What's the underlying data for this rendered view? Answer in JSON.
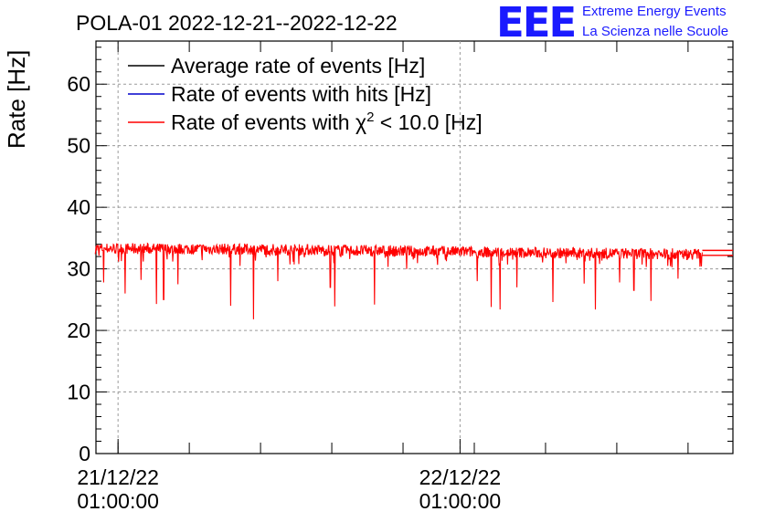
{
  "chart_data": {
    "type": "line",
    "title": "POLA-01 2022-12-21--2022-12-22",
    "ylabel": "Rate [Hz]",
    "xlabel": "",
    "ylim": [
      0,
      67
    ],
    "xlim_hours": [
      -1.55,
      43.15
    ],
    "yticks": [
      0,
      10,
      20,
      30,
      40,
      50,
      60
    ],
    "xticks": [
      {
        "hours": 0,
        "label_date": "21/12/22",
        "label_time": "01:00:00"
      },
      {
        "hours": 24,
        "label_date": "22/12/22",
        "label_time": "01:00:00"
      }
    ],
    "legend": {
      "position": "top-left",
      "entries": [
        {
          "prefix": "Average rate of events [Hz]",
          "superscript": "",
          "suffix": "",
          "color": "#000000"
        },
        {
          "prefix": "Rate of events with hits [Hz]",
          "superscript": "",
          "suffix": "",
          "color": "#0000cc"
        },
        {
          "prefix": "Rate of events with χ",
          "superscript": "2",
          "suffix": " < 10.0 [Hz]",
          "color": "#ff0000"
        }
      ]
    },
    "series": [
      {
        "name": "Rate of events with χ2 < 10.0 [Hz]",
        "color": "#ff0000",
        "x_start_hours": -1.6,
        "x_end_hours": 41.0,
        "baseline": [
          [
            -1.6,
            33.3
          ],
          [
            10,
            33.2
          ],
          [
            20,
            32.9
          ],
          [
            30,
            32.6
          ],
          [
            41.0,
            32.4
          ]
        ],
        "band_halfwidth": 0.9,
        "dips": [
          {
            "x": -1.0,
            "y": 27.8
          },
          {
            "x": 0.5,
            "y": 26.0
          },
          {
            "x": 1.6,
            "y": 28.2
          },
          {
            "x": 2.7,
            "y": 24.3
          },
          {
            "x": 3.2,
            "y": 25.0
          },
          {
            "x": 4.2,
            "y": 27.5
          },
          {
            "x": 7.9,
            "y": 24.0
          },
          {
            "x": 9.5,
            "y": 21.8
          },
          {
            "x": 11.2,
            "y": 28.0
          },
          {
            "x": 14.9,
            "y": 27.0
          },
          {
            "x": 15.2,
            "y": 23.9
          },
          {
            "x": 18.0,
            "y": 24.2
          },
          {
            "x": 25.2,
            "y": 28.0
          },
          {
            "x": 26.2,
            "y": 23.8
          },
          {
            "x": 26.8,
            "y": 23.4
          },
          {
            "x": 28.0,
            "y": 27.0
          },
          {
            "x": 30.5,
            "y": 24.6
          },
          {
            "x": 32.7,
            "y": 27.6
          },
          {
            "x": 33.5,
            "y": 23.4
          },
          {
            "x": 35.2,
            "y": 27.8
          },
          {
            "x": 36.2,
            "y": 26.5
          },
          {
            "x": 37.4,
            "y": 24.8
          },
          {
            "x": 39.3,
            "y": 28.4
          }
        ],
        "tail": {
          "x_from_hours": 41.0,
          "x_to_hours": 43.15,
          "y_low": 32.2,
          "y_high": 33.0
        }
      },
      {
        "name": "Average rate of events [Hz]",
        "color": "#000000",
        "visible_under_red": true
      },
      {
        "name": "Rate of events with hits [Hz]",
        "color": "#0000cc",
        "visible_under_red": true
      }
    ]
  },
  "logo": {
    "mark": "EEE",
    "line1": "Extreme Energy Events",
    "line2": "La Scienza nelle Scuole",
    "color": "#1a1aff"
  }
}
